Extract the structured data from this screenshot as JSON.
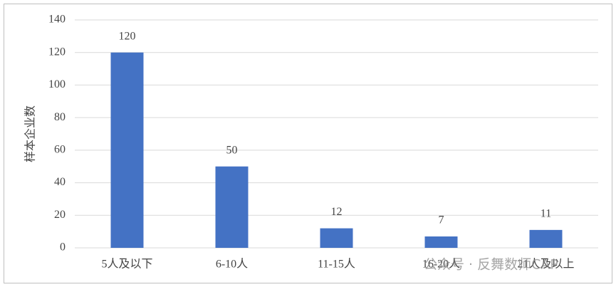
{
  "chart_data": {
    "type": "bar",
    "y_label": "样本企业数",
    "categories": [
      "5人及以下",
      "6-10人",
      "11-15人",
      "16-20人",
      "21人及以上"
    ],
    "values": [
      120,
      50,
      12,
      7,
      11
    ],
    "color": "#4472c4",
    "ylim": [
      0,
      140
    ],
    "yticks": [
      0,
      20,
      40,
      60,
      80,
      100,
      120,
      140
    ],
    "grid": true,
    "watermark": "公众号 · 反舞数师CAP"
  }
}
